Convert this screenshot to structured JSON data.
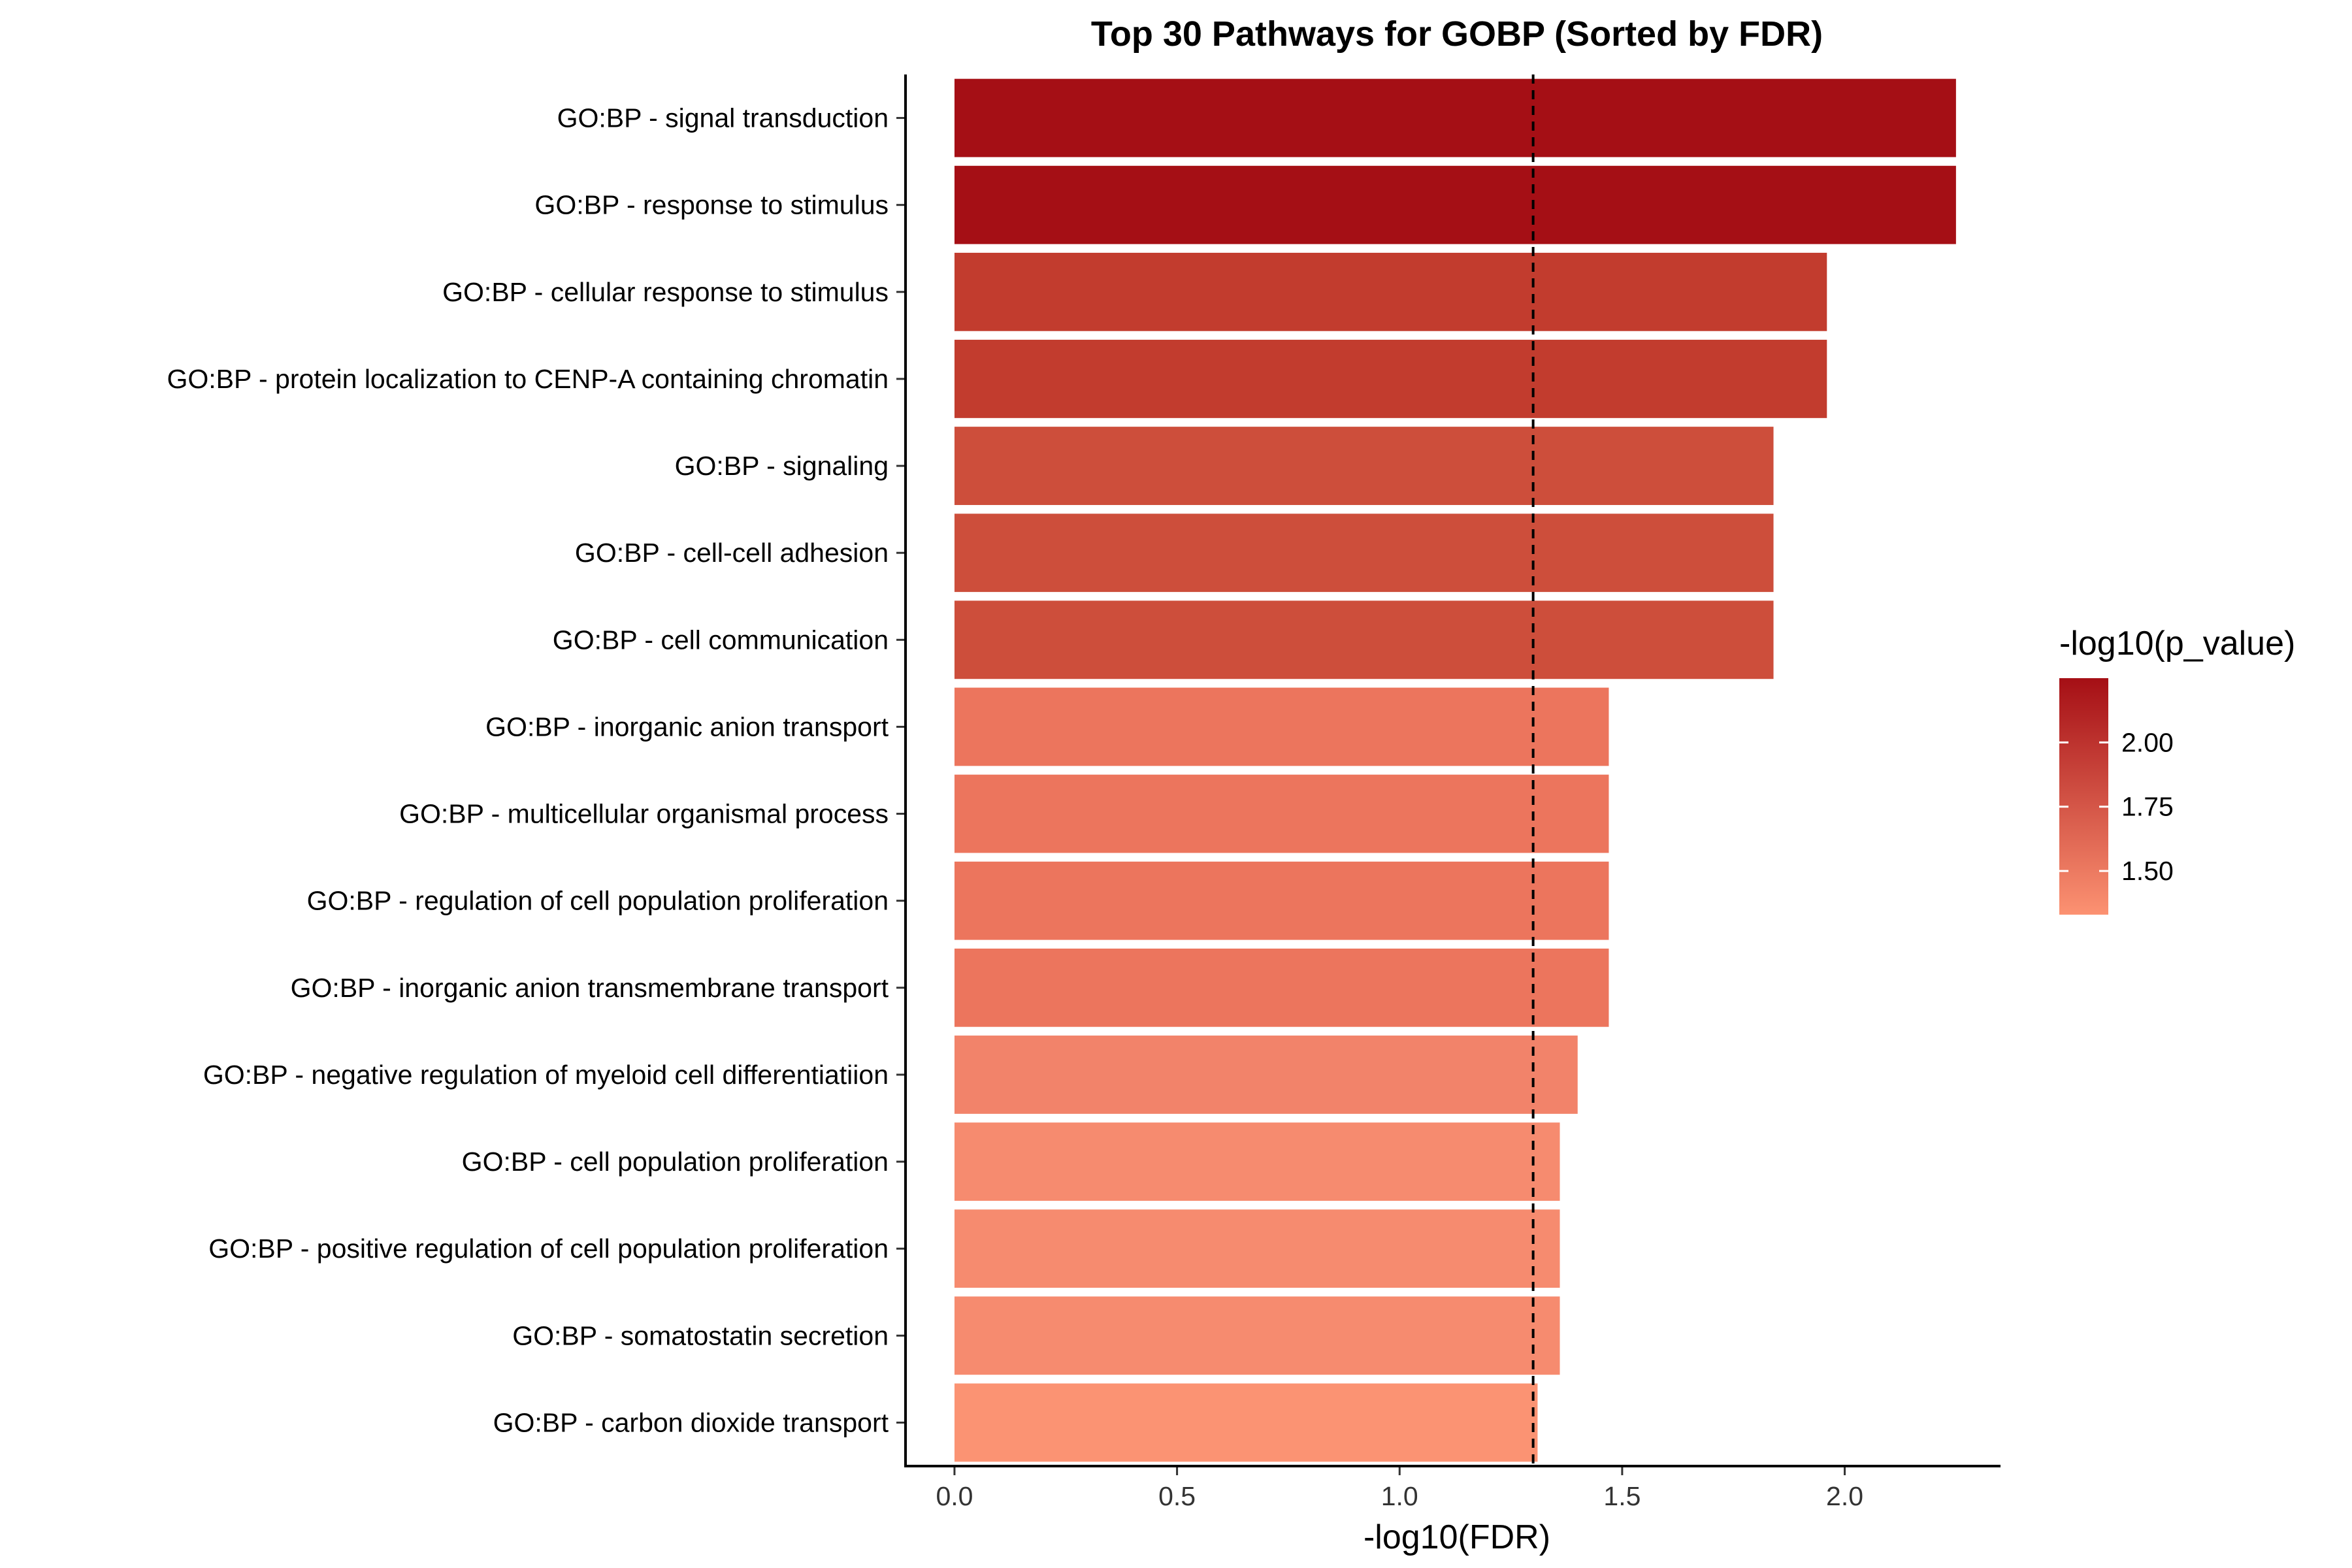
{
  "chart_data": {
    "type": "bar",
    "orientation": "horizontal",
    "title": "Top 30 Pathways for GOBP (Sorted by FDR)",
    "xlabel": "-log10(FDR)",
    "ylabel": "",
    "xlim": [
      -0.11,
      2.35
    ],
    "xticks": [
      0.0,
      0.5,
      1.0,
      1.5,
      2.0
    ],
    "xtick_labels": [
      "0.0",
      "0.5",
      "1.0",
      "1.5",
      "2.0"
    ],
    "reference_line": {
      "x": 1.3,
      "style": "dashed"
    },
    "categories": [
      "GO:BP - signal transduction",
      "GO:BP - response to stimulus",
      "GO:BP - cellular response to stimulus",
      "GO:BP - protein localization to CENP-A containing chromatin",
      "GO:BP - signaling",
      "GO:BP - cell-cell adhesion",
      "GO:BP - cell communication",
      "GO:BP - inorganic anion transport",
      "GO:BP - multicellular organismal process",
      "GO:BP - regulation of cell population proliferation",
      "GO:BP - inorganic anion transmembrane transport",
      "GO:BP - negative regulation of myeloid cell differentiatiion",
      "GO:BP - cell population proliferation",
      "GO:BP - positive regulation of cell population proliferation",
      "GO:BP - somatostatin secretion",
      "GO:BP - carbon dioxide transport"
    ],
    "values": [
      2.25,
      2.25,
      1.96,
      1.96,
      1.84,
      1.84,
      1.84,
      1.47,
      1.47,
      1.47,
      1.47,
      1.4,
      1.36,
      1.36,
      1.36,
      1.31
    ],
    "color_values": [
      2.25,
      2.25,
      1.96,
      1.96,
      1.84,
      1.84,
      1.84,
      1.47,
      1.47,
      1.47,
      1.47,
      1.4,
      1.36,
      1.36,
      1.36,
      1.33
    ],
    "colors": [
      "#a50f15",
      "#a50f15",
      "#c23c2e",
      "#c23c2e",
      "#cd4e3b",
      "#cd4e3b",
      "#cd4e3b",
      "#ec755d",
      "#ec755d",
      "#ec755d",
      "#ec755d",
      "#f2836a",
      "#f68b6f",
      "#f68b6f",
      "#f68b6f",
      "#fb9373"
    ],
    "legend": {
      "title": "-log10(p_value)",
      "placement": "right",
      "min": 1.33,
      "max": 2.25,
      "low_color": "#fc9272",
      "high_color": "#a50f15",
      "ticks": [
        1.5,
        1.75,
        2.0
      ],
      "tick_labels": [
        "1.50",
        "1.75",
        "2.00"
      ]
    },
    "grid": false
  }
}
